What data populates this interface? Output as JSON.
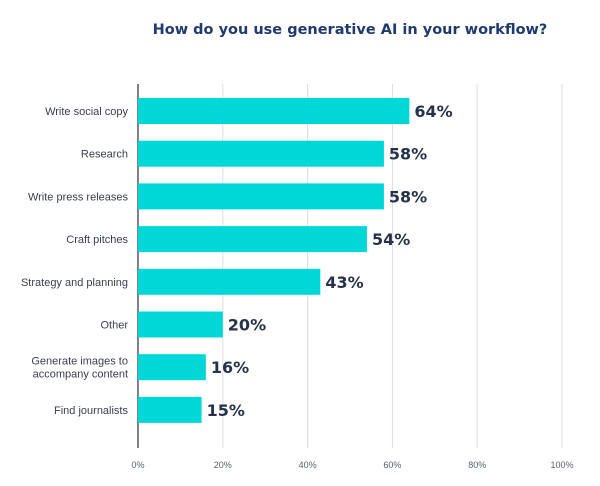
{
  "chart_data": {
    "type": "bar",
    "orientation": "horizontal",
    "title": "How do you use generative AI in your workflow?",
    "categories": [
      "Write social copy",
      "Research",
      "Write press releases",
      "Craft pitches",
      "Strategy and planning",
      "Other",
      "Generate images to accompany content",
      "Find journalists"
    ],
    "category_lines": [
      [
        "Write social copy"
      ],
      [
        "Research"
      ],
      [
        "Write press releases"
      ],
      [
        "Craft pitches"
      ],
      [
        "Strategy and planning"
      ],
      [
        "Other"
      ],
      [
        "Generate images to",
        "accompany content"
      ],
      [
        "Find journalists"
      ]
    ],
    "values": [
      64,
      58,
      58,
      54,
      43,
      20,
      16,
      15
    ],
    "value_labels": [
      "64%",
      "58%",
      "58%",
      "54%",
      "43%",
      "20%",
      "16%",
      "15%"
    ],
    "xlim": [
      0,
      100
    ],
    "x_ticks": [
      0,
      20,
      40,
      60,
      80,
      100
    ],
    "x_tick_labels": [
      "0%",
      "20%",
      "40%",
      "60%",
      "80%",
      "100%"
    ],
    "grid": true,
    "bar_color": "#00d8d8",
    "gridline_color": "#d8dde3",
    "title_color": "#1f3a6e"
  }
}
